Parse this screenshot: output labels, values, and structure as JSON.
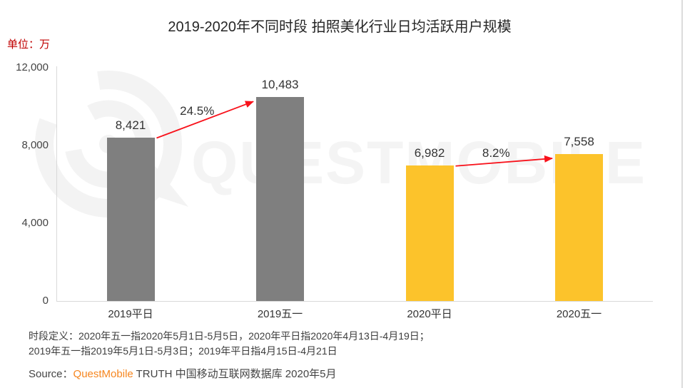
{
  "title": "2019-2020年不同时段 拍照美化行业日均活跃用户规模",
  "unit_label": "单位：万",
  "watermark": {
    "text": "QUESTMOBILE"
  },
  "chart_data": {
    "type": "bar",
    "title": "2019-2020年不同时段 拍照美化行业日均活跃用户规模",
    "unit": "单位：万",
    "categories": [
      "2019平日",
      "2019五一",
      "2020平日",
      "2020五一"
    ],
    "values": [
      8421,
      10483,
      6982,
      7558
    ],
    "value_labels": [
      "8,421",
      "10,483",
      "6,982",
      "7,558"
    ],
    "bar_colors": [
      "#7F7F7F",
      "#7F7F7F",
      "#FCC32B",
      "#FCC32B"
    ],
    "ylim": [
      0,
      12000
    ],
    "yticks": [
      {
        "value": 0,
        "label": "0"
      },
      {
        "value": 4000,
        "label": "4,000"
      },
      {
        "value": 8000,
        "label": "8,000"
      },
      {
        "value": 12000,
        "label": "12,000"
      }
    ],
    "growth_annotations": [
      {
        "from_index": 0,
        "to_index": 1,
        "label": "24.5%"
      },
      {
        "from_index": 2,
        "to_index": 3,
        "label": "8.2%"
      }
    ],
    "grid": false,
    "legend": false
  },
  "footnote": {
    "line1": "时段定义：2020年五一指2020年5月1日-5月5日，2020年平日指2020年4月13日-4月19日；",
    "line2": "2019年五一指2019年5月1日-5月3日；2019年平日指4月15日-4月21日"
  },
  "source": {
    "prefix": "Source：",
    "brand": "QuestMobile",
    "suffix": " TRUTH 中国移动互联网数据库 2020年5月"
  },
  "colors": {
    "bar_gray": "#7F7F7F",
    "bar_yellow": "#FCC32B",
    "arrow_red": "#F8121B",
    "unit_red": "#C00000",
    "brand_orange": "#F6861F",
    "axis_line": "#D9D9D9",
    "watermark_gray": "#F3F3F3"
  }
}
